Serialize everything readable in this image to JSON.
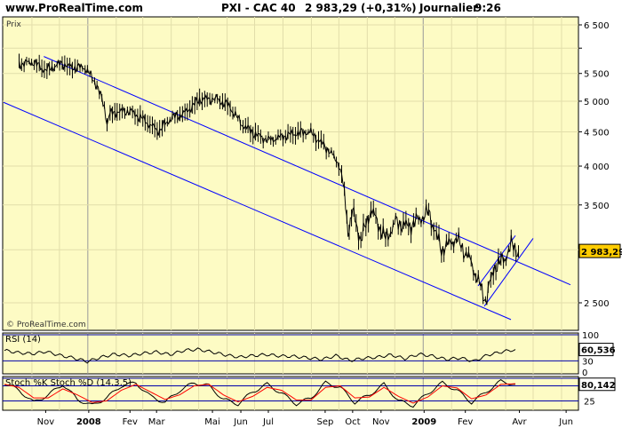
{
  "header": {
    "site": "www.ProRealTime.com",
    "instrument": "PXI - CAC 40",
    "last": "2 983,29 (+0,31%)",
    "period": "Journalier",
    "time": "9:26"
  },
  "colors": {
    "background": "#fdfbc4",
    "price_line": "#000000",
    "channel": "#0000ff",
    "rsi_line": "#000000",
    "stoch_k": "#000000",
    "stoch_d": "#ff0000",
    "label_box": "#ffcc00"
  },
  "chart_data": [
    {
      "type": "line",
      "panel": "Prix",
      "watermark": "© ProRealTime.com",
      "scale": "log",
      "ylim": [
        2300,
        6600
      ],
      "y_ticks": [
        2500,
        3000,
        3500,
        4000,
        4500,
        5000,
        5500,
        6000,
        6500
      ],
      "y_tick_labels": [
        "2 500",
        "",
        "3 500",
        "4 000",
        "4 500",
        "5 000",
        "5 500",
        "",
        "6 500"
      ],
      "last_value_label": "2 983,29",
      "x_ticks": [
        "Nov",
        "2008",
        "Fev",
        "Mar",
        "Mai",
        "Jun",
        "Jul",
        "Sep",
        "Oct",
        "Nov",
        "2009",
        "Fev",
        "Avr",
        "Jun"
      ],
      "series": [
        {
          "x": [
            "2007-10-17",
            "2007-11-01",
            "2007-11-15",
            "2007-12-03",
            "2007-12-10",
            "2007-12-28",
            "2008-01-10",
            "2008-01-18",
            "2008-01-21",
            "2008-01-23",
            "2008-02-01",
            "2008-02-15",
            "2008-02-29",
            "2008-03-17",
            "2008-03-31",
            "2008-04-15",
            "2008-05-01",
            "2008-05-19",
            "2008-06-02",
            "2008-06-16",
            "2008-07-01",
            "2008-07-15",
            "2008-07-31",
            "2008-08-15",
            "2008-08-29",
            "2008-09-12",
            "2008-09-19",
            "2008-09-30",
            "2008-10-06",
            "2008-10-10",
            "2008-10-15",
            "2008-10-24",
            "2008-11-04",
            "2008-11-20",
            "2008-12-01",
            "2008-12-15",
            "2009-01-06",
            "2009-01-20",
            "2009-02-05",
            "2009-02-20",
            "2009-03-09",
            "2009-03-19",
            "2009-03-30",
            "2009-04-06",
            "2009-04-14"
          ],
          "values": [
            5680,
            5720,
            5560,
            5700,
            5620,
            5610,
            5280,
            4900,
            4620,
            4780,
            4820,
            4830,
            4700,
            4510,
            4720,
            4800,
            5030,
            5040,
            4920,
            4620,
            4460,
            4370,
            4430,
            4480,
            4500,
            4320,
            4220,
            4030,
            3650,
            3200,
            3420,
            3100,
            3450,
            3110,
            3300,
            3250,
            3410,
            3000,
            3120,
            2900,
            2520,
            2830,
            2910,
            3050,
            2983.29
          ]
        }
      ],
      "annotations": [
        "upper channel line",
        "lower channel line",
        "rising wedge"
      ]
    },
    {
      "type": "line",
      "panel": "RSI (14)",
      "ylim": [
        0,
        100
      ],
      "y_ticks": [
        0,
        30,
        100
      ],
      "y_tick_labels": [
        "0",
        "30",
        "100"
      ],
      "last_value_label": "60,536",
      "series": [
        {
          "values": [
            58,
            52,
            49,
            55,
            45,
            38,
            28,
            40,
            48,
            44,
            50,
            54,
            47,
            58,
            61,
            54,
            46,
            40,
            44,
            47,
            43,
            42,
            38,
            34,
            44,
            31,
            37,
            40,
            46,
            36,
            48,
            43,
            34,
            38,
            29,
            46,
            54,
            60.536
          ]
        }
      ]
    },
    {
      "type": "line",
      "panel": "Stoch %K Stoch %D (14,3,5)",
      "ylim": [
        0,
        100
      ],
      "y_ticks": [
        25,
        75,
        100
      ],
      "y_tick_labels": [
        "25",
        "",
        ""
      ],
      "last_value_label": "80,142",
      "series": [
        {
          "name": "Stoch %K",
          "values": [
            85,
            60,
            20,
            45,
            80,
            30,
            10,
            35,
            75,
            85,
            40,
            20,
            60,
            85,
            75,
            30,
            15,
            55,
            80,
            50,
            15,
            35,
            85,
            70,
            20,
            45,
            80,
            25,
            10,
            50,
            85,
            60,
            20,
            55,
            90,
            80.142
          ]
        },
        {
          "name": "Stoch %D",
          "values": [
            80,
            70,
            35,
            35,
            65,
            45,
            20,
            25,
            60,
            80,
            55,
            30,
            45,
            75,
            80,
            45,
            22,
            40,
            70,
            60,
            28,
            28,
            70,
            75,
            35,
            38,
            70,
            40,
            18,
            38,
            75,
            68,
            32,
            45,
            80,
            82
          ]
        }
      ]
    }
  ]
}
